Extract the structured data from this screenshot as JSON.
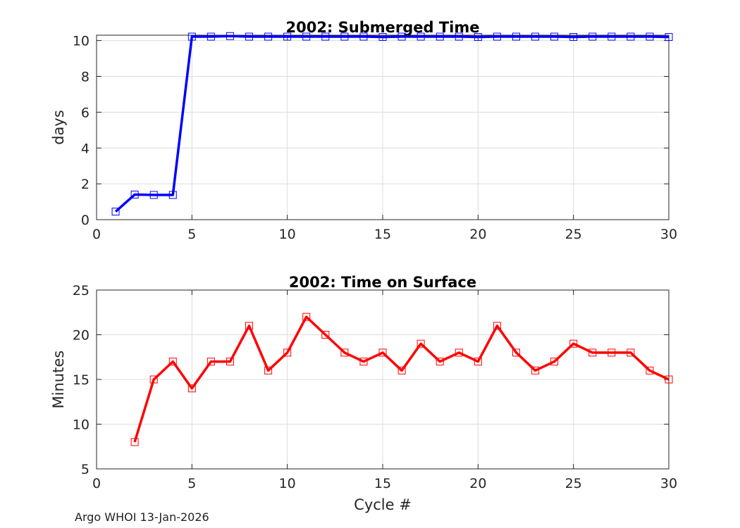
{
  "chart_data": [
    {
      "type": "line",
      "title": "2002: Submerged Time",
      "xlabel": "",
      "ylabel": "days",
      "xlim": [
        0,
        30
      ],
      "ylim": [
        0,
        10.3
      ],
      "xticks": [
        0,
        5,
        10,
        15,
        20,
        25,
        30
      ],
      "yticks": [
        0,
        2,
        4,
        6,
        8,
        10
      ],
      "grid": true,
      "color": "#0000ff",
      "marker": "square",
      "series": [
        {
          "x": [
            1,
            2,
            3,
            4,
            5,
            6,
            7,
            8,
            9,
            10,
            11,
            12,
            13,
            14,
            15,
            16,
            17,
            18,
            19,
            20,
            21,
            22,
            23,
            24,
            25,
            26,
            27,
            28,
            29,
            30
          ],
          "values": [
            0.45,
            1.4,
            1.38,
            1.38,
            10.22,
            10.22,
            10.25,
            10.22,
            10.22,
            10.22,
            10.22,
            10.22,
            10.22,
            10.22,
            10.2,
            10.22,
            10.22,
            10.22,
            10.22,
            10.2,
            10.22,
            10.22,
            10.22,
            10.22,
            10.2,
            10.22,
            10.22,
            10.22,
            10.22,
            10.2
          ]
        }
      ]
    },
    {
      "type": "line",
      "title": "2002: Time on Surface",
      "xlabel": "Cycle #",
      "ylabel": "Minutes",
      "xlim": [
        0,
        30
      ],
      "ylim": [
        5,
        25
      ],
      "xticks": [
        0,
        5,
        10,
        15,
        20,
        25,
        30
      ],
      "yticks": [
        5,
        10,
        15,
        20,
        25
      ],
      "grid": true,
      "color": "#ff0000",
      "marker": "square",
      "series": [
        {
          "x": [
            2,
            3,
            4,
            5,
            6,
            7,
            8,
            9,
            10,
            11,
            12,
            13,
            14,
            15,
            16,
            17,
            18,
            19,
            20,
            21,
            22,
            23,
            24,
            25,
            26,
            27,
            28,
            29,
            30
          ],
          "values": [
            8,
            15,
            17,
            14,
            17,
            17,
            21,
            16,
            18,
            22,
            20,
            18,
            17,
            18,
            16,
            19,
            17,
            18,
            17,
            21,
            18,
            16,
            17,
            19,
            18,
            18,
            18,
            16,
            15
          ]
        }
      ]
    }
  ],
  "footer": "Argo WHOI 13-Jan-2026"
}
